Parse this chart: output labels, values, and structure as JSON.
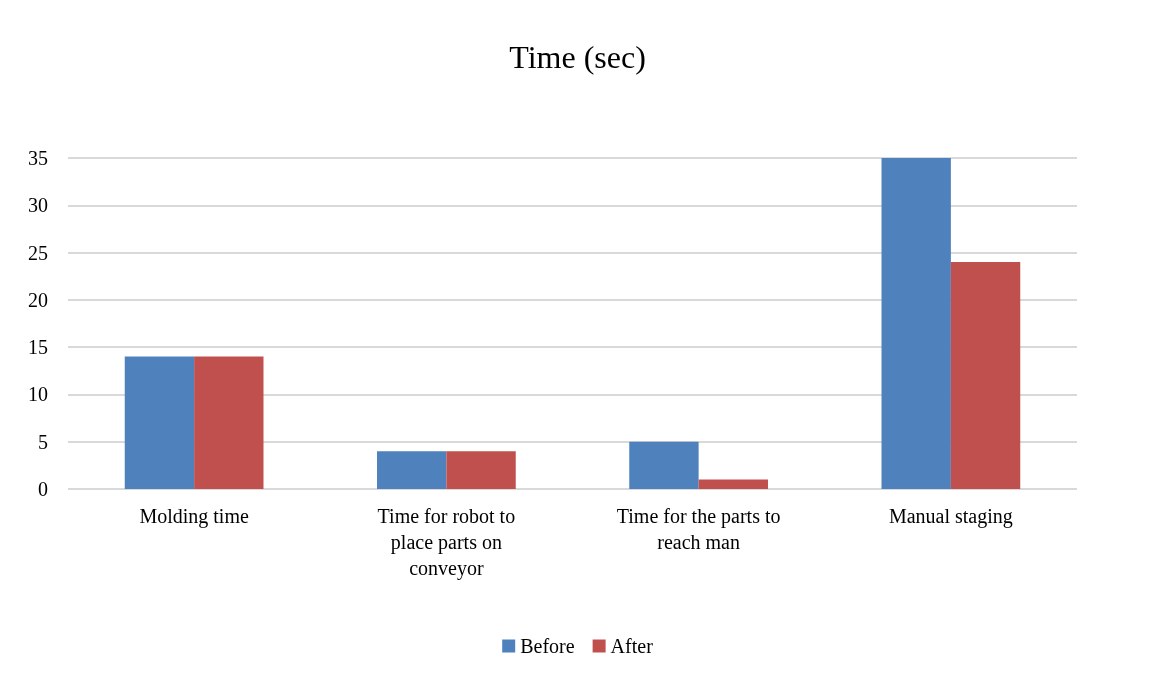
{
  "chart_data": {
    "type": "bar",
    "title": "Time (sec)",
    "categories": [
      "Molding time",
      "Time for robot to place parts on conveyor",
      "Time for the parts to reach man",
      "Manual staging"
    ],
    "series": [
      {
        "name": "Before",
        "color": "#4f81bd",
        "values": [
          14,
          4,
          5,
          35
        ]
      },
      {
        "name": "After",
        "color": "#c0504d",
        "values": [
          14,
          4,
          1,
          24
        ]
      }
    ],
    "ylim": [
      0,
      35
    ],
    "yticks": [
      0,
      5,
      10,
      15,
      20,
      25,
      30,
      35
    ],
    "grid": "y",
    "legend": "bottom"
  }
}
